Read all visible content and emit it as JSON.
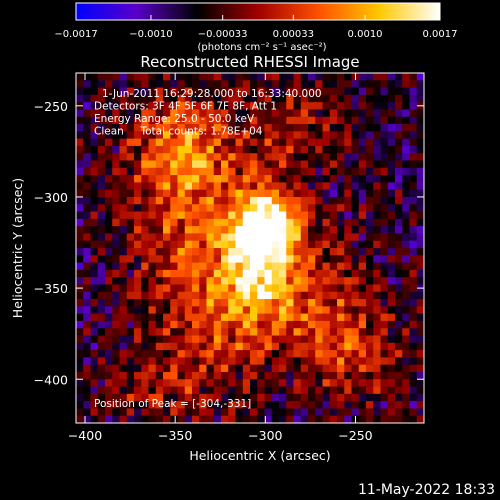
{
  "chart_data": {
    "type": "heatmap",
    "title": "Reconstructed RHESSI Image",
    "xlabel": "Heliocentric X (arcsec)",
    "ylabel": "Heliocentric Y (arcsec)",
    "xlim": [
      -405,
      -212
    ],
    "ylim": [
      -424,
      -232
    ],
    "xticks": [
      -400,
      -350,
      -300,
      -250
    ],
    "yticks": [
      -250,
      -300,
      -350,
      -400
    ],
    "xtick_labels": [
      "−400",
      "−350",
      "−300",
      "−250"
    ],
    "ytick_labels": [
      "−250",
      "−300",
      "−350",
      "−400"
    ],
    "colorbar": {
      "range": [
        -0.0017,
        0.0017
      ],
      "tick_labels": [
        "−0.0017",
        "−0.0010",
        "−0.00033",
        "0.00033",
        "0.0010",
        "0.0017"
      ],
      "tick_values": [
        -0.0017,
        -0.001,
        -0.00033,
        0.00033,
        0.001,
        0.0017
      ],
      "units_label": "(photons cm⁻² s⁻¹ asec⁻²)",
      "colormap": [
        "#0000ff",
        "#5a00c8",
        "#000000",
        "#a00000",
        "#ff5000",
        "#ffc800",
        "#ffffff"
      ]
    },
    "info_lines": [
      "1-Jun-2011 16:29:28.000 to 16:33:40.000",
      "Detectors: 3F 4F 5F 6F 7F 8F, Att 1",
      "Energy Range: 25.0 - 50.0 keV",
      "Clean     Total counts: 1.78E+04"
    ],
    "peak_label": "Position of Peak = [-304,-331]",
    "peak": [
      -304,
      -331
    ],
    "peak_value": 0.0017,
    "sources": [
      {
        "x": -304,
        "y": -331,
        "amp": 1.0,
        "sx": 14,
        "sy": 22
      },
      {
        "x": -296,
        "y": -312,
        "amp": 0.75,
        "sx": 12,
        "sy": 12
      },
      {
        "x": -345,
        "y": -302,
        "amp": 0.55,
        "sx": 22,
        "sy": 34
      },
      {
        "x": -322,
        "y": -365,
        "amp": 0.45,
        "sx": 26,
        "sy": 26
      },
      {
        "x": -345,
        "y": -270,
        "amp": 0.4,
        "sx": 20,
        "sy": 18
      },
      {
        "x": -270,
        "y": -355,
        "amp": 0.4,
        "sx": 20,
        "sy": 28
      },
      {
        "x": -285,
        "y": -262,
        "amp": 0.35,
        "sx": 18,
        "sy": 16
      },
      {
        "x": -248,
        "y": -385,
        "amp": 0.35,
        "sx": 18,
        "sy": 18
      },
      {
        "x": -360,
        "y": -405,
        "amp": 0.3,
        "sx": 24,
        "sy": 14
      }
    ],
    "background_level": -0.35
  },
  "footer": {
    "timestamp": "11-May-2022 18:33"
  }
}
